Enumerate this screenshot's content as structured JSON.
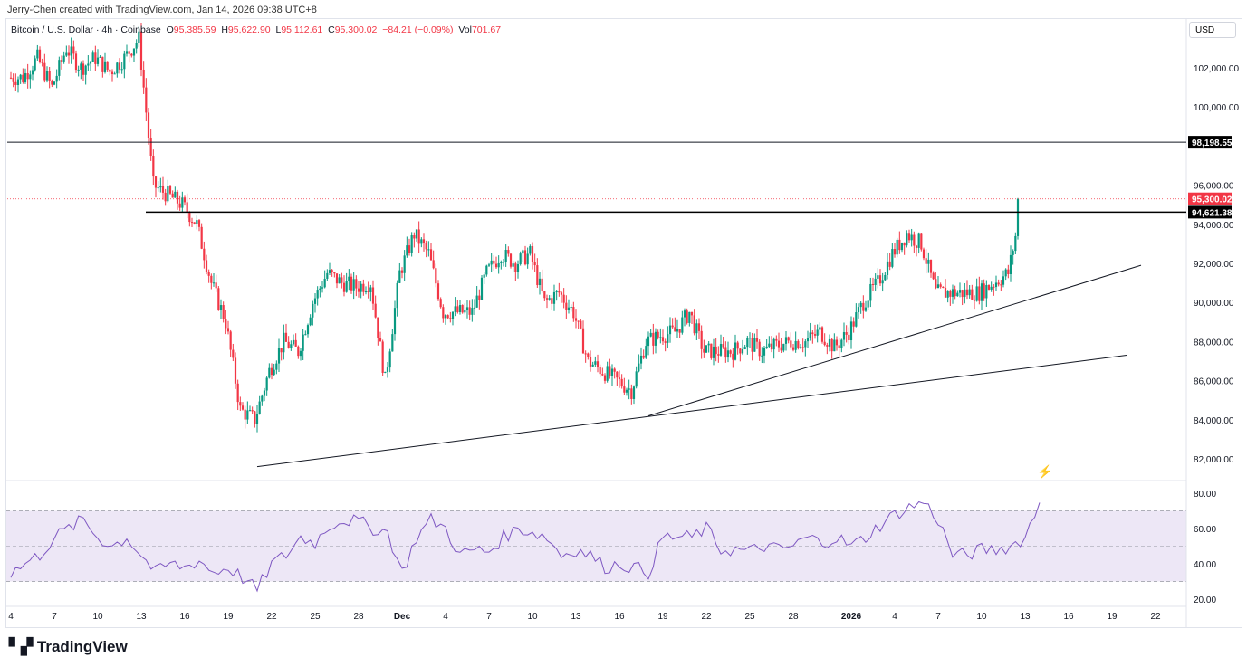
{
  "header": {
    "credit": "Jerry-Chen created with TradingView.com, Jan 14, 2026 09:38 UTC+8"
  },
  "legend": {
    "symbol": "Bitcoin / U.S. Dollar · 4h · Coinbase",
    "o_label": "O",
    "o": "95,385.59",
    "h_label": "H",
    "h": "95,622.90",
    "l_label": "L",
    "l": "95,112.61",
    "c_label": "C",
    "c": "95,300.02",
    "change": "−84.21 (−0.09%)",
    "vol_label": "Vol",
    "vol": "701.67"
  },
  "currency": "USD",
  "brand": "TradingView",
  "colors": {
    "up": "#089981",
    "down": "#f23645",
    "rsi": "#7e57c2",
    "rsi_band": "#ede7f6"
  },
  "chart_data": [
    {
      "type": "candlestick",
      "title": "Bitcoin / U.S. Dollar · 4h · Coinbase",
      "ylim": [
        81000,
        104500
      ],
      "y_ticks": [
        "102,000.00",
        "100,000.00",
        "96,000.00",
        "94,000.00",
        "92,000.00",
        "90,000.00",
        "88,000.00",
        "86,000.00",
        "84,000.00",
        "82,000.00"
      ],
      "y_tick_values": [
        102000,
        100000,
        96000,
        94000,
        92000,
        90000,
        88000,
        86000,
        84000,
        82000
      ],
      "x_ticks": [
        "4",
        "7",
        "10",
        "13",
        "16",
        "19",
        "22",
        "25",
        "28",
        "Dec",
        "4",
        "7",
        "10",
        "13",
        "16",
        "19",
        "22",
        "25",
        "28",
        "2026",
        "4",
        "7",
        "10",
        "13",
        "16",
        "19",
        "22"
      ],
      "x_tick_dates": [
        "2025-11-04",
        "2025-11-07",
        "2025-11-10",
        "2025-11-13",
        "2025-11-16",
        "2025-11-19",
        "2025-11-22",
        "2025-11-25",
        "2025-11-28",
        "2025-12-01",
        "2025-12-04",
        "2025-12-07",
        "2025-12-10",
        "2025-12-13",
        "2025-12-16",
        "2025-12-19",
        "2025-12-22",
        "2025-12-25",
        "2025-12-28",
        "2026-01-01",
        "2026-01-04",
        "2026-01-07",
        "2026-01-10",
        "2026-01-13",
        "2026-01-16",
        "2026-01-19",
        "2026-01-22"
      ],
      "start_date": "2025-11-04",
      "daily_close": [
        101500,
        102500,
        101000,
        103000,
        102000,
        102500,
        101800,
        102500,
        103500,
        96000,
        95500,
        95000,
        94000,
        91000,
        89000,
        84500,
        84000,
        86500,
        88000,
        87500,
        90000,
        91500,
        91000,
        90800,
        91000,
        86000,
        91500,
        93500,
        92500,
        89500,
        89500,
        89500,
        91500,
        92500,
        92000,
        92500,
        90000,
        90500,
        89500,
        87000,
        86500,
        86000,
        85500,
        88000,
        88300,
        88500,
        89500,
        87500,
        87500,
        87500,
        88000,
        87500,
        87800,
        88000,
        88000,
        88500,
        87700,
        88500,
        90000,
        91000,
        92500,
        93500,
        93000,
        90500,
        90500,
        90500,
        90500,
        91000,
        91500,
        95300
      ],
      "last_price": "95,300.02",
      "horizontal_levels": [
        {
          "value": 98198.55,
          "label": "98,198.55"
        },
        {
          "value": 94621.38,
          "label": "94,621.38"
        }
      ],
      "trendlines": [
        {
          "from": [
            "2025-11-21",
            81600
          ],
          "to": [
            "2026-01-20",
            87300
          ]
        },
        {
          "from": [
            "2025-12-18",
            84200
          ],
          "to": [
            "2026-01-21",
            91900
          ]
        }
      ]
    },
    {
      "type": "line",
      "series": [
        {
          "values": [
            35,
            40,
            45,
            55,
            60,
            65,
            55,
            50,
            55,
            45,
            35,
            40,
            38,
            42,
            35,
            38,
            32,
            25,
            40,
            45,
            55,
            52,
            62,
            65,
            64,
            60,
            58,
            35,
            55,
            65,
            60,
            45,
            48,
            47,
            55,
            60,
            58,
            55,
            45,
            48,
            45,
            38,
            40,
            38,
            35,
            55,
            55,
            55,
            60,
            48,
            48,
            47,
            50,
            48,
            50,
            55,
            52,
            55,
            50,
            55,
            62,
            68,
            72,
            75,
            65,
            45,
            45,
            48,
            48,
            50,
            55,
            75
          ]
        }
      ],
      "ylim": [
        15,
        85
      ],
      "y_ticks": [
        "80.00",
        "60.00",
        "40.00",
        "20.00"
      ],
      "y_tick_values": [
        80,
        60,
        40,
        20
      ],
      "bands": [
        30,
        50,
        70
      ]
    }
  ]
}
